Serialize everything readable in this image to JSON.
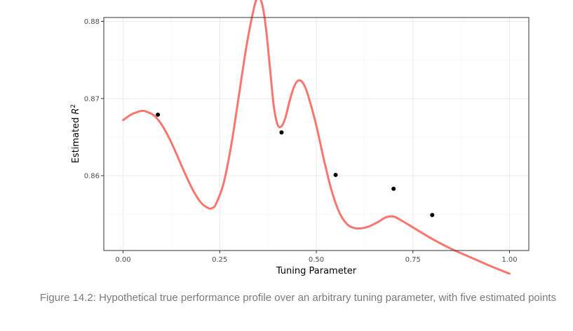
{
  "chart_data": {
    "type": "line",
    "xlabel": "Tuning Parameter",
    "ylabel_text": "Estimated",
    "ylabel_symbol": "R",
    "ylabel_sup": "2",
    "xlim": [
      -0.05,
      1.05
    ],
    "ylim": [
      0.8503,
      0.8805
    ],
    "x_ticks": [
      {
        "value": 0.0,
        "label": "0.00"
      },
      {
        "value": 0.25,
        "label": "0.25"
      },
      {
        "value": 0.5,
        "label": "0.50"
      },
      {
        "value": 0.75,
        "label": "0.75"
      },
      {
        "value": 1.0,
        "label": "1.00"
      }
    ],
    "y_ticks": [
      {
        "value": 0.86,
        "label": "0.86"
      },
      {
        "value": 0.87,
        "label": "0.87"
      },
      {
        "value": 0.88,
        "label": "0.88"
      }
    ],
    "grid": true,
    "series": [
      {
        "kind": "curve",
        "color": "#F8766D",
        "x": [
          0.0,
          0.02,
          0.04,
          0.05,
          0.06,
          0.08,
          0.1,
          0.12,
          0.14,
          0.16,
          0.18,
          0.2,
          0.22,
          0.23,
          0.24,
          0.26,
          0.28,
          0.3,
          0.32,
          0.34,
          0.35,
          0.36,
          0.37,
          0.38,
          0.39,
          0.4,
          0.41,
          0.42,
          0.43,
          0.44,
          0.45,
          0.46,
          0.47,
          0.48,
          0.5,
          0.52,
          0.54,
          0.56,
          0.58,
          0.6,
          0.62,
          0.64,
          0.66,
          0.68,
          0.7,
          0.72,
          0.75,
          0.8,
          0.85,
          0.9,
          0.95,
          1.0
        ],
        "y": [
          0.8672,
          0.8679,
          0.8683,
          0.8684,
          0.8683,
          0.8678,
          0.8666,
          0.8648,
          0.8626,
          0.8603,
          0.8582,
          0.8566,
          0.8558,
          0.8558,
          0.8563,
          0.859,
          0.864,
          0.8705,
          0.877,
          0.882,
          0.883,
          0.8822,
          0.879,
          0.874,
          0.869,
          0.8666,
          0.8664,
          0.8675,
          0.8695,
          0.8712,
          0.8722,
          0.8723,
          0.8716,
          0.8702,
          0.8665,
          0.862,
          0.858,
          0.8552,
          0.8537,
          0.8532,
          0.8532,
          0.8535,
          0.854,
          0.8546,
          0.8547,
          0.8542,
          0.8533,
          0.8518,
          0.8505,
          0.8494,
          0.8483,
          0.8473
        ]
      },
      {
        "kind": "points",
        "color": "#000000",
        "x": [
          0.09,
          0.41,
          0.55,
          0.7,
          0.8
        ],
        "y": [
          0.8679,
          0.8656,
          0.8601,
          0.8583,
          0.8549
        ]
      }
    ]
  },
  "caption": "Figure 14.2: Hypothetical true performance profile over an arbitrary tuning parameter, with five estimated points"
}
